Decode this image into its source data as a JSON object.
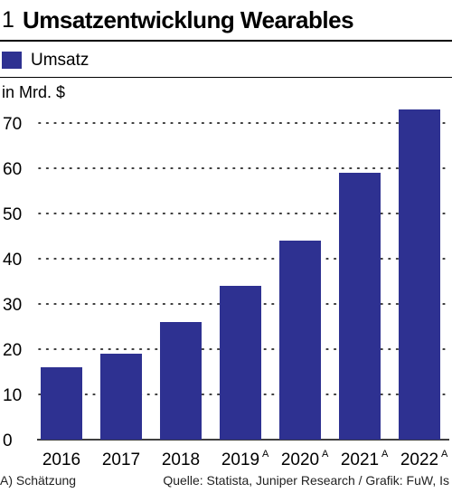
{
  "figure_number": "1",
  "title": "Umsatzentwicklung Wearables",
  "unit_label": "in Mrd. $",
  "footnote": "A) Schätzung",
  "source": "Quelle: Statista, Juniper Research / Grafik: FuW, Is",
  "colors": {
    "bar": "#2e3191",
    "grid": "#000000",
    "text": "#000000"
  },
  "chart_data": {
    "type": "bar",
    "categories": [
      "2016",
      "2017",
      "2018",
      "2019",
      "2020",
      "2021",
      "2022"
    ],
    "category_marks": [
      "",
      "",
      "",
      "A",
      "A",
      "A",
      "A"
    ],
    "series": [
      {
        "name": "Umsatz",
        "values": [
          16,
          19,
          26,
          34,
          44,
          59,
          73
        ]
      }
    ],
    "ylabel": "in Mrd. $",
    "ylim": [
      0,
      75
    ],
    "yticks": [
      0,
      10,
      20,
      30,
      40,
      50,
      60,
      70
    ],
    "grid": true,
    "legend": "top-left"
  }
}
